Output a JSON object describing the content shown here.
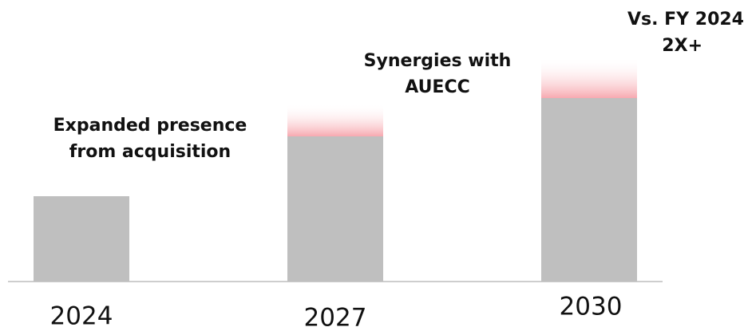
{
  "chart_data": {
    "type": "bar",
    "stacked": true,
    "categories": [
      "2024",
      "2027",
      "2030"
    ],
    "series": [
      {
        "color": "#bfbfbf",
        "values": [
          107,
          182,
          230
        ]
      },
      {
        "color": "#f7a9b0",
        "values": [
          null,
          41,
          51
        ],
        "gradient": true
      }
    ],
    "ylim": [
      0,
      300
    ],
    "annotations": [
      [
        "Expanded presence",
        "from acquisition"
      ],
      [
        "Synergies with",
        "AUECC"
      ],
      [
        "Vs. FY 2024",
        "2X+"
      ]
    ]
  }
}
